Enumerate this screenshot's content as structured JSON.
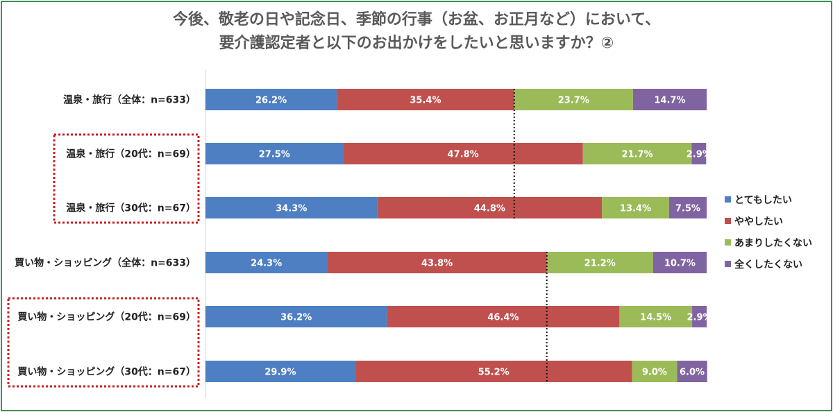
{
  "title": {
    "line1": "今後、敬老の日や記念日、季節の行事（お盆、お正月など）において、",
    "line2": "要介護認定者と以下のお出かけをしたいと思いますか？②"
  },
  "colors": {
    "frame": "#3f8f55",
    "highlight_box": "#cc1f1f",
    "reference_line": "#111111"
  },
  "chart_data": {
    "type": "bar",
    "orientation": "horizontal",
    "stacked": true,
    "unit": "%",
    "categories": [
      "温泉・旅行（全体：n=633）",
      "温泉・旅行（20代：n=69）",
      "温泉・旅行（30代：n=67）",
      "買い物・ショッピング（全体：n=633）",
      "買い物・ショッピング（20代：n=69）",
      "買い物・ショッピング（30代：n=67）"
    ],
    "series": [
      {
        "name": "とてもしたい",
        "color": "#4e7fc2",
        "values": [
          26.2,
          27.5,
          34.3,
          24.3,
          36.2,
          29.9
        ]
      },
      {
        "name": "ややしたい",
        "color": "#c0504d",
        "values": [
          35.4,
          47.8,
          44.8,
          43.8,
          46.4,
          55.2
        ]
      },
      {
        "name": "あまりしたくない",
        "color": "#9bbb59",
        "values": [
          23.7,
          21.7,
          13.4,
          21.2,
          14.5,
          9.0
        ]
      },
      {
        "name": "全くしたくない",
        "color": "#8064a2",
        "values": [
          14.7,
          2.9,
          7.5,
          10.7,
          2.9,
          6.0
        ]
      }
    ],
    "value_labels": [
      [
        "26.2%",
        "35.4%",
        "23.7%",
        "14.7%"
      ],
      [
        "27.5%",
        "47.8%",
        "21.7%",
        "2.9%"
      ],
      [
        "34.3%",
        "44.8%",
        "13.4%",
        "7.5%"
      ],
      [
        "24.3%",
        "43.8%",
        "21.2%",
        "10.7%"
      ],
      [
        "36.2%",
        "46.4%",
        "14.5%",
        "2.9%"
      ],
      [
        "29.9%",
        "55.2%",
        "9.0%",
        "6.0%"
      ]
    ],
    "xlim": [
      0,
      100
    ],
    "grid": false,
    "legend": "right",
    "reference_lines": [
      {
        "value": 61.6,
        "from": 0,
        "to": 2
      },
      {
        "value": 68.1,
        "from": 3,
        "to": 5
      }
    ],
    "highlight_groups": [
      [
        1,
        2
      ],
      [
        4,
        5
      ]
    ]
  }
}
